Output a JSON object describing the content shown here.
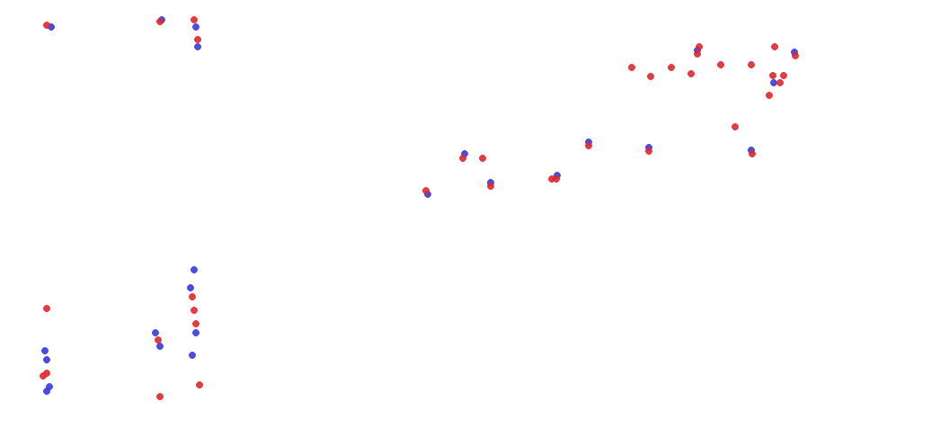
{
  "chart_data": {
    "type": "scatter",
    "xlim": [
      0,
      1046
    ],
    "ylim": [
      0,
      477
    ],
    "grid": false,
    "tick_labels": false,
    "marker": "circle",
    "series": [
      {
        "color": "#3a3adf",
        "x": [
          57,
          180,
          218,
          220,
          52,
          55,
          50,
          173,
          178,
          212,
          216,
          218,
          214,
          52,
          655,
          546,
          476,
          620,
          861,
          836,
          517,
          884,
          776,
          722
        ],
        "values": [
          447,
          455,
          447,
          425,
          77,
          47,
          87,
          107,
          92,
          157,
          177,
          107,
          82,
          42,
          319,
          274,
          261,
          282,
          385,
          310,
          306,
          419,
          421,
          313
        ]
      },
      {
        "color": "#e0282e",
        "x": [
          778,
          862,
          776,
          885,
          703,
          747,
          802,
          836,
          724,
          769,
          860,
          872,
          868,
          856,
          818,
          515,
          537,
          655,
          722,
          837,
          474,
          546,
          619,
          614,
          52,
          178,
          216,
          220,
          52,
          48,
          176,
          216,
          214,
          218,
          222,
          178,
          52
        ],
        "values": [
          425,
          425,
          417,
          415,
          402,
          402,
          405,
          405,
          392,
          395,
          393,
          393,
          385,
          371,
          336,
          301,
          301,
          315,
          309,
          306,
          265,
          270,
          278,
          278,
          449,
          453,
          455,
          433,
          62,
          59,
          99,
          132,
          147,
          117,
          49,
          36,
          134
        ]
      }
    ]
  }
}
